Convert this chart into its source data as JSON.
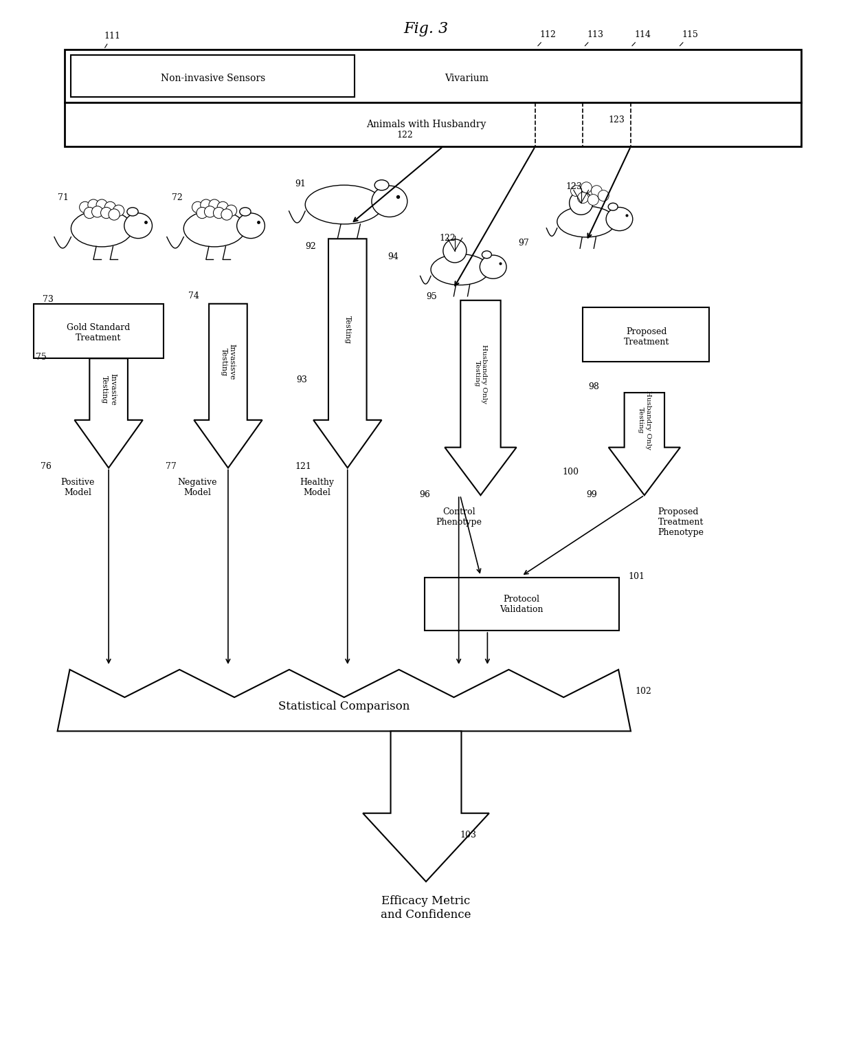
{
  "title": "Fig. 3",
  "bg_color": "#ffffff",
  "line_color": "#000000",
  "fig_width": 12.4,
  "fig_height": 15.3,
  "labels": {
    "non_invasive": "Non-invasive Sensors",
    "vivarium": "Vivarium",
    "animals": "Animals with Husbandry",
    "gold_standard": "Gold Standard\nTreatment",
    "proposed_treatment": "Proposed\nTreatment",
    "positive_model": "Positive\nModel",
    "negative_model": "Negative\nModel",
    "healthy_model": "Healthy\nModel",
    "control_phenotype": "Control\nPhenotype",
    "proposed_phenotype": "Proposed\nTreatment\nPhenotype",
    "protocol_validation": "Protocol\nValidation",
    "statistical_comparison": "Statistical Comparison",
    "efficacy_metric": "Efficacy Metric\nand Confidence",
    "invasive_testing1": "Invasive\nTesting",
    "invasive_testing2": "Invasisve\nTesting",
    "testing": "Testing",
    "husbandry_only1": "Husbandry Only\nTesting",
    "husbandry_only2": "Husbandry Only\nTesting"
  }
}
